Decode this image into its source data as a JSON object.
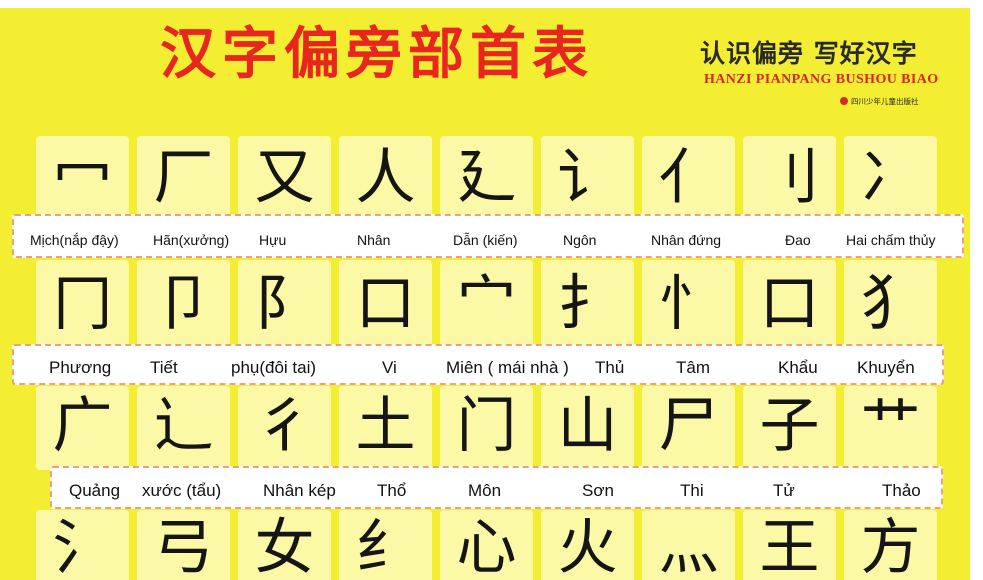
{
  "poster": {
    "title": "汉字偏旁部首表",
    "tagline": "认识偏旁  写好汉字",
    "pinyin": "HANZI PIANPANG BUSHOU BIAO",
    "publisher": "四川少年儿童出版社"
  },
  "rows": [
    {
      "radicals": [
        "冖",
        "厂",
        "又",
        "人",
        "廴",
        "讠",
        "亻",
        "刂",
        "冫"
      ],
      "labels": [
        "Mịch(nắp đậy)",
        "Hãn(xưởng)",
        "Hựu",
        "Nhân",
        "Dẫn (kiến)",
        "Ngôn",
        "Nhân đứng",
        "Đao",
        "Hai chấm thủy"
      ]
    },
    {
      "radicals": [
        "冂",
        "卩",
        "阝",
        "口",
        "宀",
        "扌",
        "忄",
        "口",
        "犭"
      ],
      "labels": [
        "Phương",
        "Tiết",
        "phụ(đôi tai)",
        "Vi",
        "Miên ( mái nhà )",
        "Thủ",
        "Tâm",
        "Khẩu",
        "Khuyển"
      ]
    },
    {
      "radicals": [
        "广",
        "辶",
        "彳",
        "土",
        "门",
        "山",
        "尸",
        "子",
        "艹"
      ],
      "labels": [
        "Quảng",
        "xước (tẩu)",
        "Nhân kép",
        "Thổ",
        "Môn",
        "Sơn",
        "Thi",
        "Tử",
        "Thảo"
      ]
    },
    {
      "radicals": [
        "氵",
        "弓",
        "女",
        "纟",
        "心",
        "火",
        "灬",
        "王",
        "方"
      ],
      "labels": []
    }
  ]
}
